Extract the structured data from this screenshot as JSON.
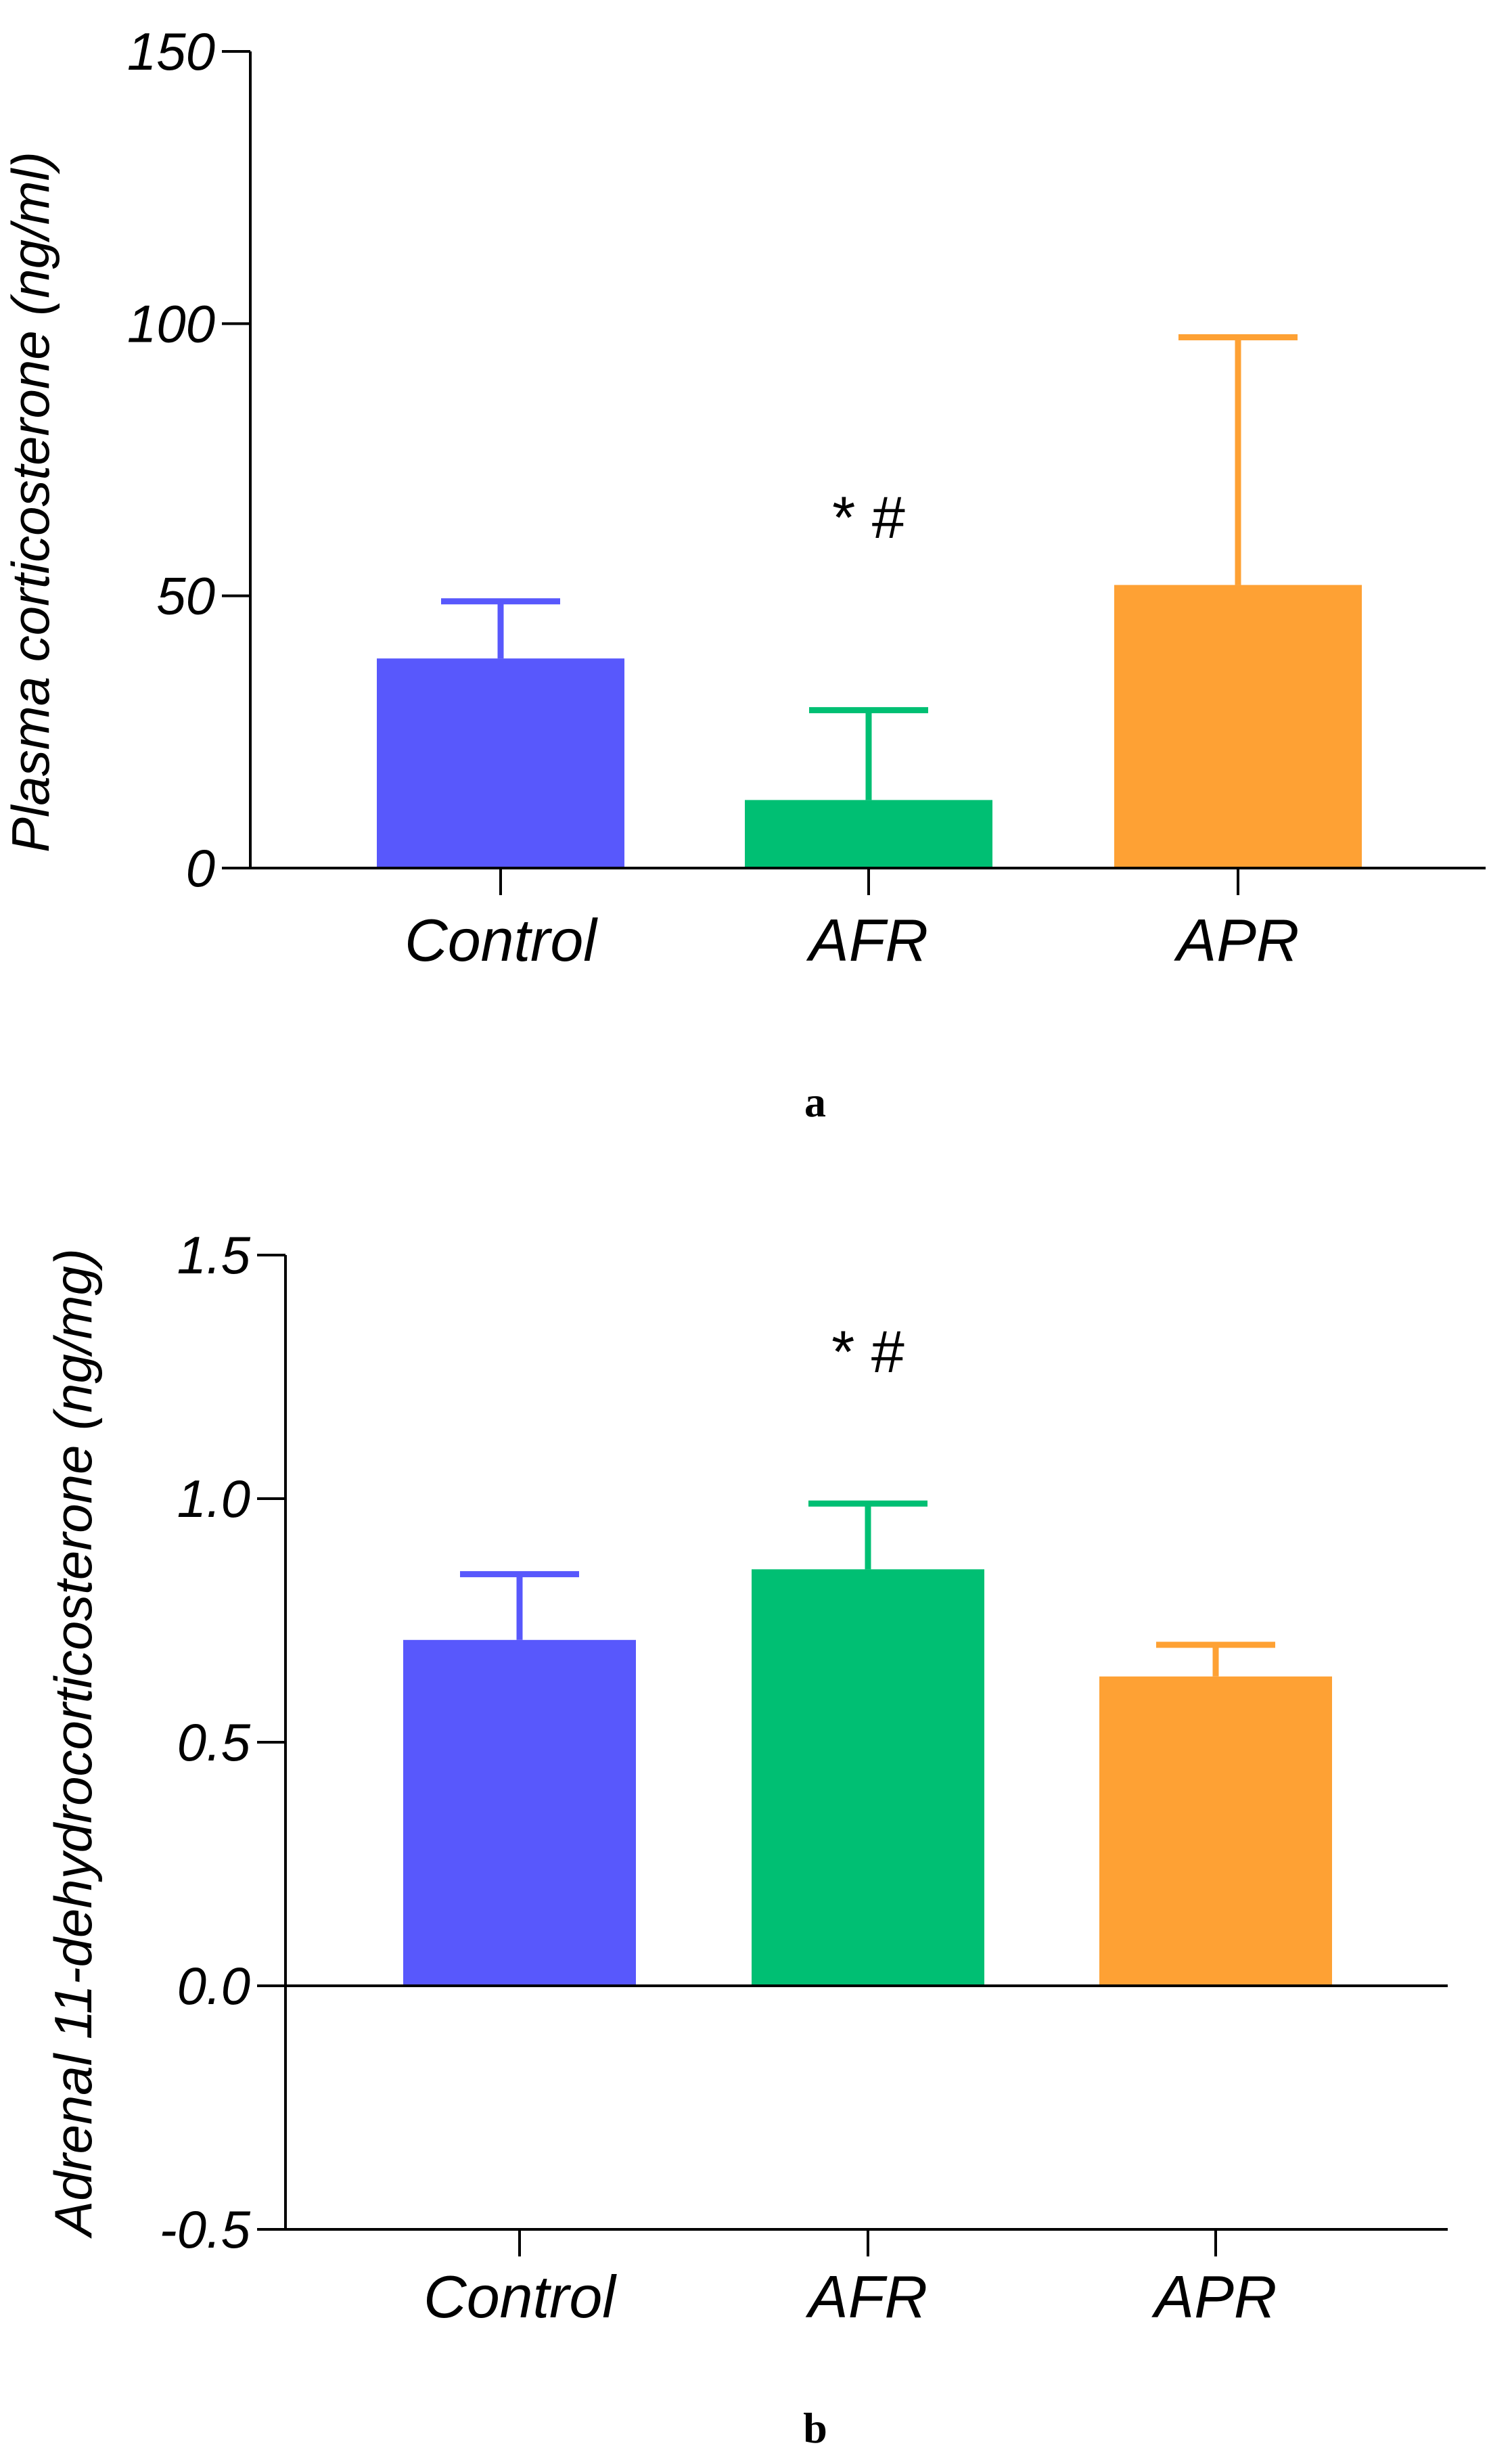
{
  "chart_data": [
    {
      "type": "bar",
      "panel_label": "a",
      "title": "",
      "xlabel": "",
      "ylabel": "Plasma corticosterone (ng/ml)",
      "ylim": [
        0,
        150
      ],
      "yticks": [
        0,
        50,
        100,
        150
      ],
      "ytick_labels": [
        "0",
        "50",
        "100",
        "150"
      ],
      "categories": [
        "Control",
        "AFR",
        "APR"
      ],
      "values": [
        38.5,
        12.5,
        52
      ],
      "errors": [
        10.5,
        16.5,
        45.5
      ],
      "colors": [
        "#5858fc",
        "#00bf73",
        "#fea134"
      ],
      "annotations": [
        {
          "category": "AFR",
          "text": "* #"
        }
      ]
    },
    {
      "type": "bar",
      "panel_label": "b",
      "title": "",
      "xlabel": "",
      "ylabel": "Adrenal 11-dehydrocorticosterone (ng/mg)",
      "ylim": [
        -0.5,
        1.5
      ],
      "yticks": [
        -0.5,
        0.0,
        0.5,
        1.0,
        1.5
      ],
      "ytick_labels": [
        "-0.5",
        "0.0",
        "0.5",
        "1.0",
        "1.5"
      ],
      "categories": [
        "Control",
        "AFR",
        "APR"
      ],
      "values": [
        0.71,
        0.855,
        0.635
      ],
      "errors": [
        0.135,
        0.135,
        0.065
      ],
      "colors": [
        "#5858fc",
        "#00bf73",
        "#fea134"
      ],
      "annotations": [
        {
          "category": "AFR",
          "text": "* #"
        }
      ]
    }
  ]
}
